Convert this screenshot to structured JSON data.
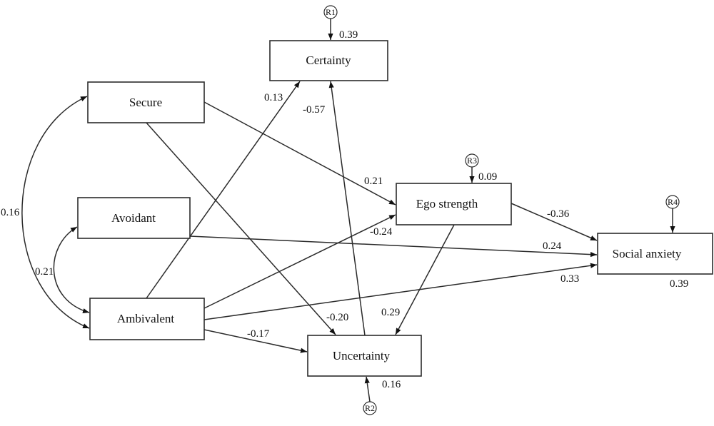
{
  "nodes": {
    "certainty": "Certainty",
    "secure": "Secure",
    "avoidant": "Avoidant",
    "ambivalent": "Ambivalent",
    "ego_strength": "Ego strength",
    "social_anxiety": "Social anxiety",
    "uncertainty": "Uncertainty"
  },
  "residuals": {
    "r1": "R1",
    "r2": "R2",
    "r3": "R3",
    "r4": "R4"
  },
  "r_squared": {
    "certainty": "0.39",
    "uncertainty": "0.16",
    "ego_strength": "0.09",
    "social_anxiety": "0.39"
  },
  "paths": {
    "ambivalent_certainty": "0.13",
    "uncertainty_certainty": "-0.57",
    "secure_ego": "0.21",
    "secure_uncertainty": "-0.20",
    "ambivalent_ego": "-0.24",
    "avoidant_social": "0.24",
    "ambivalent_social": "0.33",
    "ambivalent_uncertainty": "-0.17",
    "ego_social": "-0.36",
    "ego_uncertainty": "0.29"
  },
  "correlations": {
    "secure_ambivalent": "0.16",
    "avoidant_ambivalent": "0.21"
  }
}
